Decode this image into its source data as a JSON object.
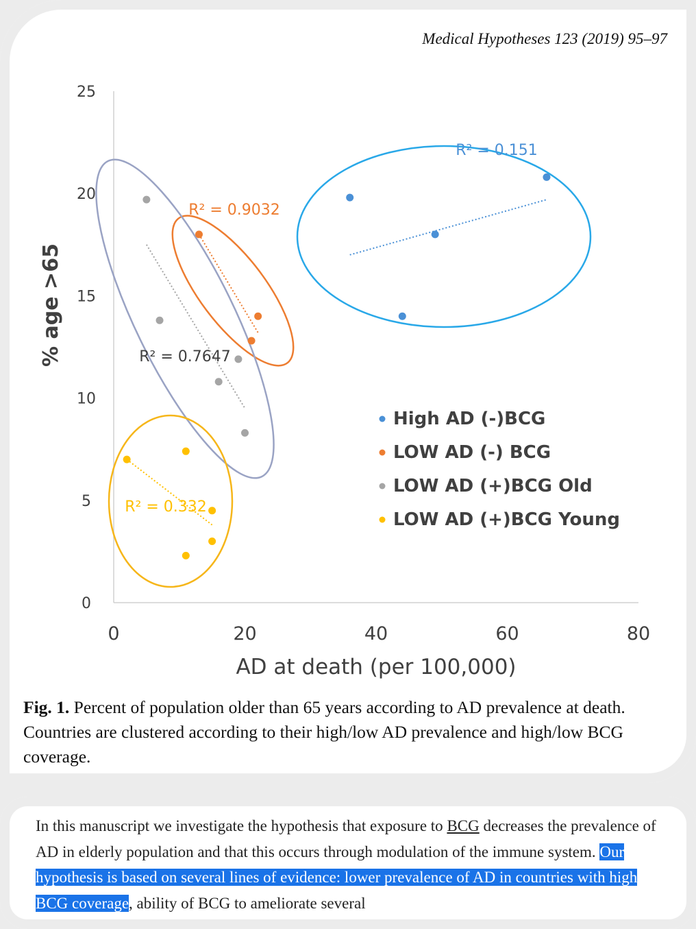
{
  "journal_ref": "Medical Hypotheses 123 (2019) 95–97",
  "chart_data": {
    "type": "scatter",
    "xlabel": "AD at death (per 100,000)",
    "ylabel": "% age >65",
    "xlim": [
      0,
      80
    ],
    "ylim": [
      0,
      25
    ],
    "xticks": [
      "0",
      "20",
      "40",
      "60",
      "80"
    ],
    "yticks": [
      "0",
      "5",
      "10",
      "15",
      "20",
      "25"
    ],
    "grid": false,
    "legend_position": "right",
    "series": [
      {
        "name": "High AD (-)BCG",
        "color": "#4a90d6",
        "ellipse_color": "#29a8e8",
        "r2_label": "R² = 0.151",
        "points": [
          [
            36,
            19.8
          ],
          [
            44,
            14.0
          ],
          [
            49,
            18.0
          ],
          [
            66,
            20.8
          ]
        ],
        "trendline": [
          [
            36,
            17.0
          ],
          [
            66,
            19.7
          ]
        ]
      },
      {
        "name": "LOW AD (-) BCG",
        "color": "#ed7d31",
        "ellipse_color": "#ed7d31",
        "r2_label": "R² = 0.9032",
        "points": [
          [
            13,
            18.0
          ],
          [
            21,
            12.8
          ],
          [
            22,
            14.0
          ]
        ],
        "trendline": [
          [
            13,
            18.0
          ],
          [
            22,
            13.2
          ]
        ]
      },
      {
        "name": "LOW AD (+)BCG Old",
        "color": "#a5a5a5",
        "ellipse_color": "#9aa3c4",
        "r2_label": "R² = 0.7647",
        "points": [
          [
            5,
            19.7
          ],
          [
            7,
            13.8
          ],
          [
            16,
            10.8
          ],
          [
            19,
            11.9
          ],
          [
            20,
            8.3
          ]
        ],
        "trendline": [
          [
            5,
            17.5
          ],
          [
            20,
            9.5
          ]
        ]
      },
      {
        "name": "LOW AD (+)BCG Young",
        "color": "#ffc000",
        "ellipse_color": "#f6b61a",
        "r2_label": "R² = 0.332",
        "points": [
          [
            2,
            7.0
          ],
          [
            11,
            7.4
          ],
          [
            11,
            2.3
          ],
          [
            15,
            3.0
          ],
          [
            15,
            4.5
          ]
        ],
        "trendline": [
          [
            2,
            7.0
          ],
          [
            15,
            3.8
          ]
        ]
      }
    ]
  },
  "caption": {
    "label": "Fig. 1.",
    "text": "Percent of population older than 65 years according to AD prevalence at death. Countries are clustered according to their high/low AD prevalence and high/low BCG coverage."
  },
  "excerpt": {
    "before": "In this manuscript we investigate the hypothesis that exposure to ",
    "link": "BCG",
    "middle": " decreases the prevalence of AD in elderly population and that this occurs through modulation of the immune system. ",
    "highlighted": "Our hypothesis is based on several lines of evidence: lower prevalence of AD in countries with high BCG coverage",
    "after": ", ability of BCG to ameliorate several"
  }
}
